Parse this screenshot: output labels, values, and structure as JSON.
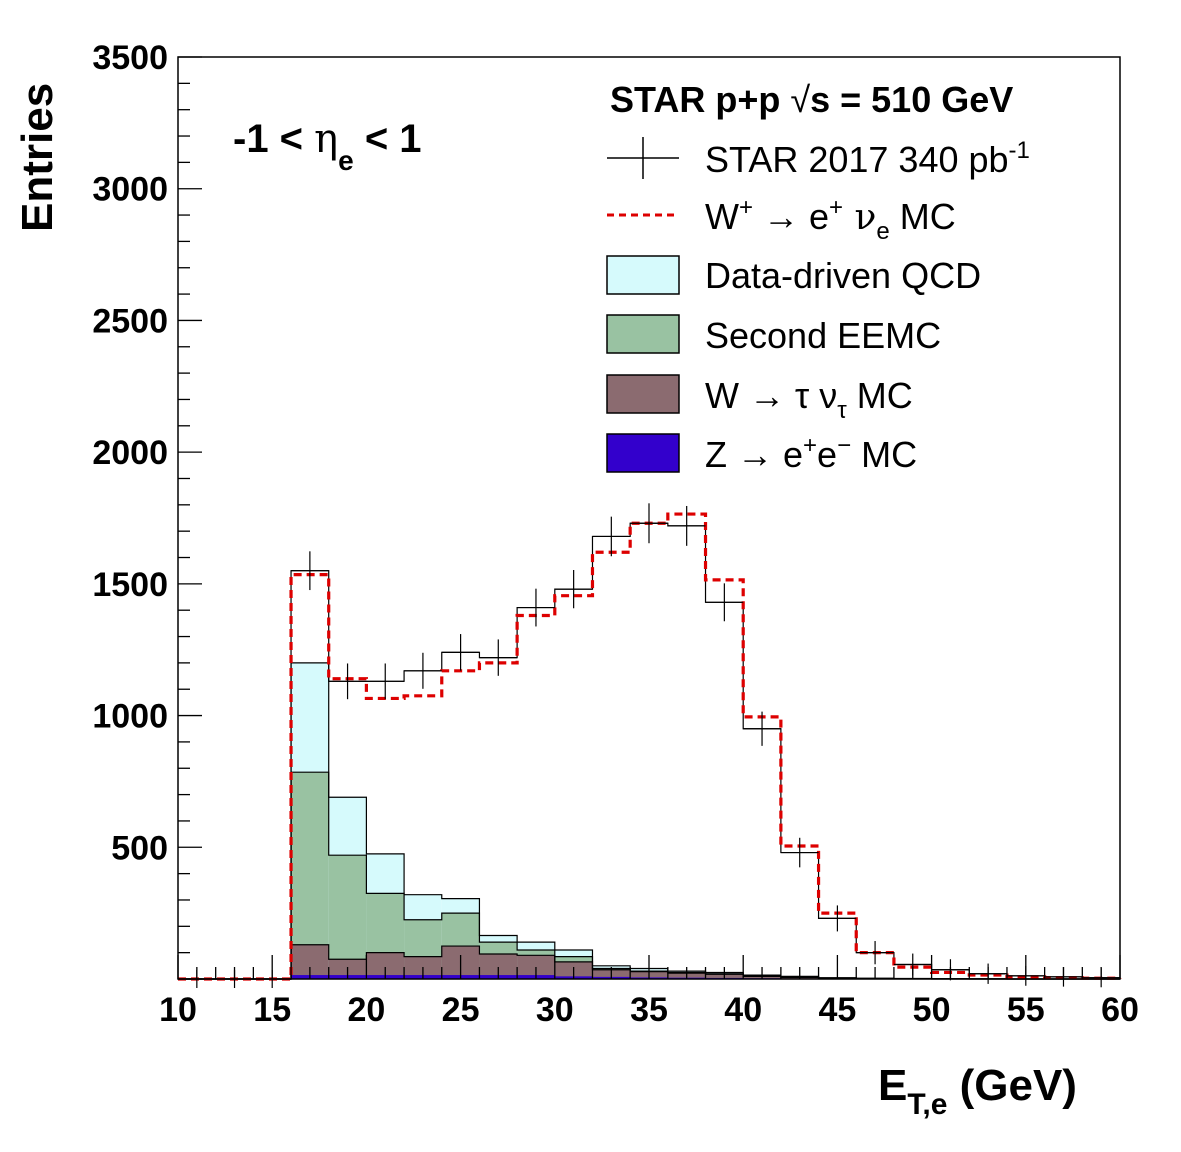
{
  "chart_data": {
    "type": "histogram",
    "x_label_main": "E",
    "x_label_sub": "T,e",
    "x_label_unit": " (GeV)",
    "ylabel": "Entries",
    "xlim": [
      10,
      60
    ],
    "ylim": [
      0,
      3500
    ],
    "x_ticks": [
      10,
      15,
      20,
      25,
      30,
      35,
      40,
      45,
      50,
      55,
      60
    ],
    "y_ticks": [
      500,
      1000,
      1500,
      2000,
      2500,
      3000,
      3500
    ],
    "x_ticks_display": [
      "10",
      "15",
      "20",
      "25",
      "30",
      "35",
      "40",
      "45",
      "50",
      "55",
      "60"
    ],
    "y_ticks_display": [
      "500",
      "1000",
      "1500",
      "2000",
      "2500",
      "3000",
      "3500"
    ],
    "bin_edges": [
      10,
      12,
      14,
      16,
      18,
      20,
      22,
      24,
      26,
      28,
      30,
      32,
      34,
      36,
      38,
      40,
      42,
      44,
      46,
      48,
      50,
      52,
      54,
      56,
      58,
      60
    ],
    "annotation": {
      "eta_prefix": "-1 < ",
      "eta_symbol": "η",
      "eta_sub": "e",
      "eta_suffix": " < 1"
    },
    "legend_header": {
      "prefix": "STAR p+p  ",
      "sqrt": "√",
      "s_text": "s = 510 GeV"
    },
    "series": [
      {
        "name": "STAR 2017 340 pb-1",
        "kind": "data",
        "color": "#000000",
        "values": [
          0,
          0,
          0,
          1550,
          1130,
          1130,
          1170,
          1240,
          1220,
          1410,
          1480,
          1680,
          1730,
          1720,
          1430,
          950,
          480,
          230,
          100,
          55,
          35,
          20,
          12,
          8,
          5
        ]
      },
      {
        "name": "W+ → e+ νe MC",
        "kind": "mc-signal",
        "color": "#dd0000",
        "values": [
          0,
          0,
          0,
          1535,
          1140,
          1065,
          1075,
          1170,
          1200,
          1380,
          1455,
          1620,
          1730,
          1765,
          1515,
          995,
          505,
          250,
          100,
          45,
          25,
          15,
          8,
          5,
          3
        ]
      },
      {
        "name": "Data-driven QCD",
        "kind": "stack-total",
        "color": "#d6fafc",
        "values": [
          0,
          0,
          0,
          1200,
          690,
          475,
          320,
          305,
          165,
          140,
          110,
          50,
          40,
          30,
          25,
          15,
          10,
          5,
          3,
          2,
          1,
          1,
          0,
          0,
          0
        ]
      },
      {
        "name": "Second EEMC",
        "kind": "stack",
        "color": "#99c2a2",
        "values": [
          0,
          0,
          0,
          785,
          470,
          325,
          225,
          250,
          140,
          110,
          85,
          40,
          30,
          25,
          20,
          12,
          8,
          4,
          2,
          1,
          1,
          0,
          0,
          0,
          0
        ]
      },
      {
        "name": "W → τ ντ MC",
        "kind": "stack",
        "color": "#8b6b70",
        "values": [
          0,
          0,
          0,
          130,
          75,
          100,
          85,
          125,
          95,
          90,
          65,
          35,
          28,
          22,
          18,
          10,
          6,
          3,
          1,
          1,
          0,
          0,
          0,
          0,
          0
        ]
      },
      {
        "name": "Z → e+e− MC",
        "kind": "stack",
        "color": "#3300cc",
        "values": [
          0,
          0,
          0,
          15,
          15,
          15,
          15,
          15,
          15,
          15,
          10,
          8,
          6,
          5,
          4,
          3,
          2,
          1,
          0,
          0,
          0,
          0,
          0,
          0,
          0
        ]
      }
    ],
    "legend": [
      {
        "key": "data",
        "text": "STAR 2017 340 pb",
        "sup": "-1"
      },
      {
        "key": "wplus",
        "t1": "W",
        "s1": "+",
        "t2": " → e",
        "s2": "+",
        "t3": " ν",
        "sub": "e",
        "t4": " MC"
      },
      {
        "key": "qcd",
        "text": "Data-driven QCD"
      },
      {
        "key": "eemc",
        "text": "Second EEMC"
      },
      {
        "key": "wtau",
        "t1": "W  → τ  ν",
        "sub": "τ",
        "t2": " MC"
      },
      {
        "key": "z",
        "t1": "Z → e",
        "s1": "+",
        "t2": "e",
        "s2": "−",
        "t3": " MC"
      }
    ]
  }
}
